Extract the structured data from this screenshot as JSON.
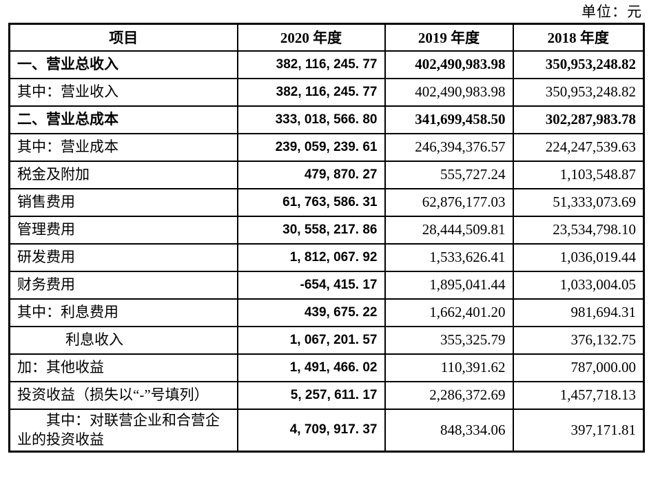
{
  "unit_label": "单位：元",
  "table": {
    "headers": [
      "项目",
      "2020 年度",
      "2019 年度",
      "2018 年度"
    ],
    "rows": [
      {
        "label": "一、营业总收入",
        "v2020": "382, 116, 245. 77",
        "v2019": "402,490,983.98",
        "v2018": "350,953,248.82",
        "bold": true
      },
      {
        "label": "其中：营业收入",
        "v2020": "382, 116, 245. 77",
        "v2019": "402,490,983.98",
        "v2018": "350,953,248.82",
        "bold": false
      },
      {
        "label": "二、营业总成本",
        "v2020": "333, 018, 566. 80",
        "v2019": "341,699,458.50",
        "v2018": "302,287,983.78",
        "bold": true
      },
      {
        "label": "其中：营业成本",
        "v2020": "239, 059, 239. 61",
        "v2019": "246,394,376.57",
        "v2018": "224,247,539.63",
        "bold": false
      },
      {
        "label": "税金及附加",
        "v2020": "479, 870. 27",
        "v2019": "555,727.24",
        "v2018": "1,103,548.87",
        "bold": false
      },
      {
        "label": "销售费用",
        "v2020": "61, 763, 586. 31",
        "v2019": "62,876,177.03",
        "v2018": "51,333,073.69",
        "bold": false
      },
      {
        "label": "管理费用",
        "v2020": "30, 558, 217. 86",
        "v2019": "28,444,509.81",
        "v2018": "23,534,798.10",
        "bold": false
      },
      {
        "label": "研发费用",
        "v2020": "1, 812, 067. 92",
        "v2019": "1,533,626.41",
        "v2018": "1,036,019.44",
        "bold": false
      },
      {
        "label": "财务费用",
        "v2020": "-654, 415. 17",
        "v2019": "1,895,041.44",
        "v2018": "1,033,004.05",
        "bold": false
      },
      {
        "label": "其中：利息费用",
        "v2020": "439, 675. 22",
        "v2019": "1,662,401.20",
        "v2018": "981,694.31",
        "bold": false
      },
      {
        "label": "利息收入",
        "v2020": "1, 067, 201. 57",
        "v2019": "355,325.79",
        "v2018": "376,132.75",
        "bold": false,
        "indent": "indent-sub"
      },
      {
        "label": "加：其他收益",
        "v2020": "1, 491, 466. 02",
        "v2019": "110,391.62",
        "v2018": "787,000.00",
        "bold": false
      },
      {
        "label": "投资收益（损失以“-”号填列）",
        "v2020": "5, 257, 611. 17",
        "v2019": "2,286,372.69",
        "v2018": "1,457,718.13",
        "bold": false
      },
      {
        "label": "其中：对联营企业和合营企业的投资收益",
        "v2020": "4, 709, 917. 37",
        "v2019": "848,334.06",
        "v2018": "397,171.81",
        "bold": false,
        "indent": "hanging",
        "tall": true
      }
    ]
  }
}
